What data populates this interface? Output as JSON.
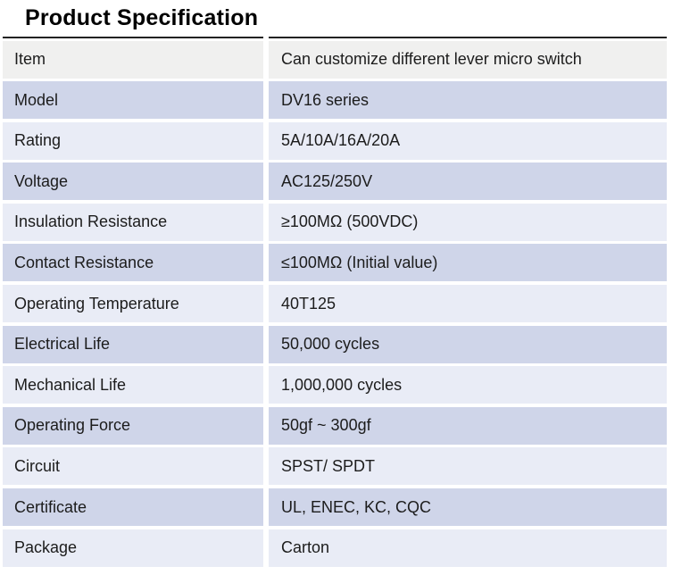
{
  "title": "Product Specification",
  "table": {
    "rows": [
      {
        "label": "Item",
        "value": "Can customize different lever micro switch"
      },
      {
        "label": "Model",
        "value": "DV16 series"
      },
      {
        "label": "Rating",
        "value": "5A/10A/16A/20A"
      },
      {
        "label": "Voltage",
        "value": "AC125/250V"
      },
      {
        "label": "Insulation Resistance",
        "value": "≥100MΩ (500VDC)"
      },
      {
        "label": "Contact Resistance",
        "value": "≤100MΩ (Initial value)"
      },
      {
        "label": "Operating Temperature",
        "value": "40T125"
      },
      {
        "label": "Electrical Life",
        "value": "50,000 cycles"
      },
      {
        "label": "Mechanical Life",
        "value": "1,000,000 cycles"
      },
      {
        "label": "Operating Force",
        "value": "50gf ~  300gf"
      },
      {
        "label": "Circuit",
        "value": "SPST/ SPDT"
      },
      {
        "label": "Certificate",
        "value": "UL, ENEC, KC, CQC"
      },
      {
        "label": "Package",
        "value": "Carton"
      }
    ]
  },
  "colors": {
    "header_row_bg": "#f0f0ef",
    "lavender_row_bg": "#cfd5e9",
    "pale_lavender_row_bg": "#e9ecf6",
    "title_rule": "#222222"
  }
}
